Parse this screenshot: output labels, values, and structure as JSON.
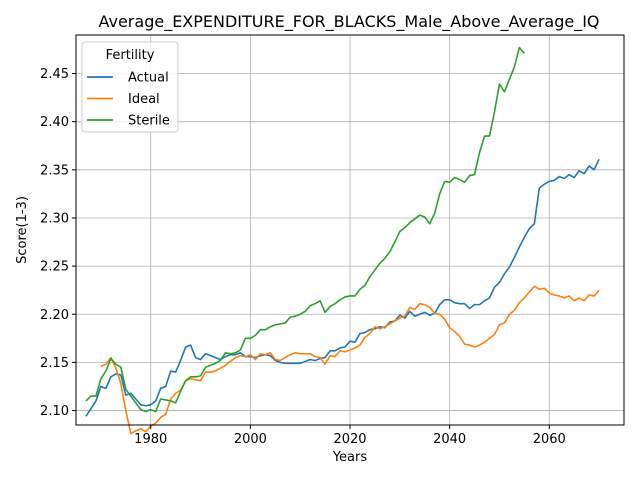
{
  "chart_data": {
    "type": "line",
    "title": "Average_EXPENDITURE_FOR_BLACKS_Male_Above_Average_IQ",
    "xlabel": "Years",
    "ylabel": "Score(1-3)",
    "xlim": [
      1965,
      2075
    ],
    "ylim": [
      2.085,
      2.49
    ],
    "xticks": [
      1980,
      2000,
      2020,
      2040,
      2060
    ],
    "yticks": [
      2.1,
      2.15,
      2.2,
      2.25,
      2.3,
      2.35,
      2.4,
      2.45
    ],
    "grid": true,
    "legend": {
      "title": "Fertility",
      "placement": "top-left"
    },
    "series": [
      {
        "name": "Actual",
        "color": "#1f77b4",
        "x": [
          1967,
          1968,
          1969,
          1970,
          1971,
          1972,
          1973,
          1974,
          1975,
          1976,
          1977,
          1978,
          1979,
          1980,
          1981,
          1982,
          1983,
          1984,
          1985,
          1986,
          1987,
          1988,
          1989,
          1990,
          1991,
          1992,
          1993,
          1994,
          1995,
          1996,
          1997,
          1998,
          1999,
          2000,
          2001,
          2002,
          2003,
          2004,
          2005,
          2006,
          2007,
          2008,
          2009,
          2010,
          2011,
          2012,
          2013,
          2014,
          2015,
          2016,
          2017,
          2018,
          2019,
          2020,
          2021,
          2022,
          2023,
          2024,
          2025,
          2026,
          2027,
          2028,
          2029,
          2030,
          2031,
          2032,
          2033,
          2034,
          2035,
          2036,
          2037,
          2038,
          2039,
          2040,
          2041,
          2042,
          2043,
          2044,
          2045,
          2046,
          2047,
          2048,
          2049,
          2050,
          2051,
          2052,
          2053,
          2054,
          2055,
          2056,
          2057,
          2058,
          2059,
          2060,
          2061,
          2062,
          2063,
          2064,
          2065,
          2066,
          2067,
          2068,
          2069,
          2070
        ],
        "y": [
          2.094,
          2.102,
          2.11,
          2.125,
          2.123,
          2.135,
          2.138,
          2.137,
          2.116,
          2.118,
          2.112,
          2.106,
          2.105,
          2.106,
          2.11,
          2.123,
          2.125,
          2.141,
          2.14,
          2.152,
          2.166,
          2.168,
          2.155,
          2.153,
          2.159,
          2.157,
          2.155,
          2.153,
          2.156,
          2.158,
          2.158,
          2.16,
          2.156,
          2.156,
          2.155,
          2.157,
          2.158,
          2.157,
          2.152,
          2.15,
          2.149,
          2.149,
          2.149,
          2.149,
          2.151,
          2.153,
          2.152,
          2.154,
          2.155,
          2.162,
          2.162,
          2.165,
          2.166,
          2.172,
          2.171,
          2.18,
          2.181,
          2.184,
          2.185,
          2.187,
          2.186,
          2.192,
          2.193,
          2.199,
          2.196,
          2.203,
          2.198,
          2.2,
          2.202,
          2.199,
          2.201,
          2.21,
          2.215,
          2.215,
          2.212,
          2.211,
          2.211,
          2.206,
          2.21,
          2.21,
          2.214,
          2.217,
          2.228,
          2.233,
          2.242,
          2.249,
          2.259,
          2.27,
          2.28,
          2.289,
          2.294,
          2.331,
          2.335,
          2.338,
          2.339,
          2.343,
          2.341,
          2.345,
          2.342,
          2.349,
          2.346,
          2.354,
          2.35,
          2.361
        ]
      },
      {
        "name": "Ideal",
        "color": "#ff7f0e",
        "x": [
          1970,
          1971,
          1972,
          1973,
          1974,
          1975,
          1976,
          1977,
          1978,
          1979,
          1980,
          1981,
          1982,
          1983,
          1984,
          1985,
          1986,
          1987,
          1988,
          1989,
          1990,
          1991,
          1992,
          1993,
          1994,
          1995,
          1996,
          1997,
          1998,
          1999,
          2000,
          2001,
          2002,
          2003,
          2004,
          2005,
          2006,
          2007,
          2008,
          2009,
          2010,
          2011,
          2012,
          2013,
          2014,
          2015,
          2016,
          2017,
          2018,
          2019,
          2020,
          2021,
          2022,
          2023,
          2024,
          2025,
          2026,
          2027,
          2028,
          2029,
          2030,
          2031,
          2032,
          2033,
          2034,
          2035,
          2036,
          2037,
          2038,
          2039,
          2040,
          2041,
          2042,
          2043,
          2044,
          2045,
          2046,
          2047,
          2048,
          2049,
          2050,
          2051,
          2052,
          2053,
          2054,
          2055,
          2056,
          2057,
          2058,
          2059,
          2060,
          2061,
          2062,
          2063,
          2064,
          2065,
          2066,
          2067,
          2068,
          2069,
          2070
        ],
        "y": [
          2.146,
          2.148,
          2.155,
          2.144,
          2.128,
          2.1,
          2.076,
          2.079,
          2.081,
          2.078,
          2.084,
          2.087,
          2.093,
          2.096,
          2.112,
          2.118,
          2.121,
          2.131,
          2.133,
          2.132,
          2.131,
          2.14,
          2.14,
          2.141,
          2.144,
          2.147,
          2.151,
          2.155,
          2.157,
          2.156,
          2.158,
          2.153,
          2.159,
          2.158,
          2.16,
          2.153,
          2.152,
          2.155,
          2.158,
          2.16,
          2.159,
          2.159,
          2.159,
          2.156,
          2.155,
          2.148,
          2.157,
          2.156,
          2.162,
          2.161,
          2.163,
          2.165,
          2.168,
          2.176,
          2.18,
          2.187,
          2.185,
          2.187,
          2.19,
          2.193,
          2.196,
          2.198,
          2.207,
          2.205,
          2.211,
          2.21,
          2.207,
          2.201,
          2.2,
          2.195,
          2.186,
          2.182,
          2.177,
          2.169,
          2.168,
          2.166,
          2.168,
          2.171,
          2.175,
          2.179,
          2.189,
          2.191,
          2.2,
          2.204,
          2.212,
          2.217,
          2.223,
          2.229,
          2.226,
          2.227,
          2.222,
          2.22,
          2.219,
          2.217,
          2.219,
          2.214,
          2.217,
          2.214,
          2.22,
          2.219,
          2.225
        ]
      },
      {
        "name": "Sterile",
        "color": "#2ca02c",
        "x": [
          1967,
          1968,
          1969,
          1970,
          1971,
          1972,
          1973,
          1974,
          1975,
          1976,
          1977,
          1978,
          1979,
          1980,
          1981,
          1982,
          1983,
          1984,
          1985,
          1986,
          1987,
          1988,
          1989,
          1990,
          1991,
          1992,
          1993,
          1994,
          1995,
          1996,
          1997,
          1998,
          1999,
          2000,
          2001,
          2002,
          2003,
          2004,
          2005,
          2006,
          2007,
          2008,
          2009,
          2010,
          2011,
          2012,
          2013,
          2014,
          2015,
          2016,
          2017,
          2018,
          2019,
          2020,
          2021,
          2022,
          2023,
          2024,
          2025,
          2026,
          2027,
          2028,
          2029,
          2030,
          2031,
          2032,
          2033,
          2034,
          2035,
          2036,
          2037,
          2038,
          2039,
          2040,
          2041,
          2042,
          2043,
          2044,
          2045,
          2046,
          2047,
          2048,
          2049,
          2050,
          2051,
          2052,
          2053,
          2054,
          2055,
          2056
        ],
        "y": [
          2.11,
          2.115,
          2.115,
          2.133,
          2.141,
          2.154,
          2.148,
          2.145,
          2.122,
          2.115,
          2.108,
          2.101,
          2.099,
          2.101,
          2.099,
          2.112,
          2.111,
          2.11,
          2.108,
          2.12,
          2.131,
          2.135,
          2.135,
          2.136,
          2.145,
          2.147,
          2.149,
          2.152,
          2.16,
          2.159,
          2.16,
          2.163,
          2.175,
          2.175,
          2.178,
          2.184,
          2.184,
          2.187,
          2.189,
          2.19,
          2.191,
          2.197,
          2.198,
          2.2,
          2.203,
          2.209,
          2.211,
          2.214,
          2.202,
          2.208,
          2.211,
          2.215,
          2.218,
          2.219,
          2.219,
          2.226,
          2.23,
          2.239,
          2.246,
          2.253,
          2.258,
          2.265,
          2.275,
          2.286,
          2.29,
          2.295,
          2.299,
          2.303,
          2.301,
          2.294,
          2.305,
          2.325,
          2.338,
          2.337,
          2.342,
          2.34,
          2.337,
          2.344,
          2.345,
          2.368,
          2.385,
          2.385,
          2.41,
          2.439,
          2.431,
          2.444,
          2.457,
          2.477,
          2.471,
          null
        ]
      }
    ]
  }
}
